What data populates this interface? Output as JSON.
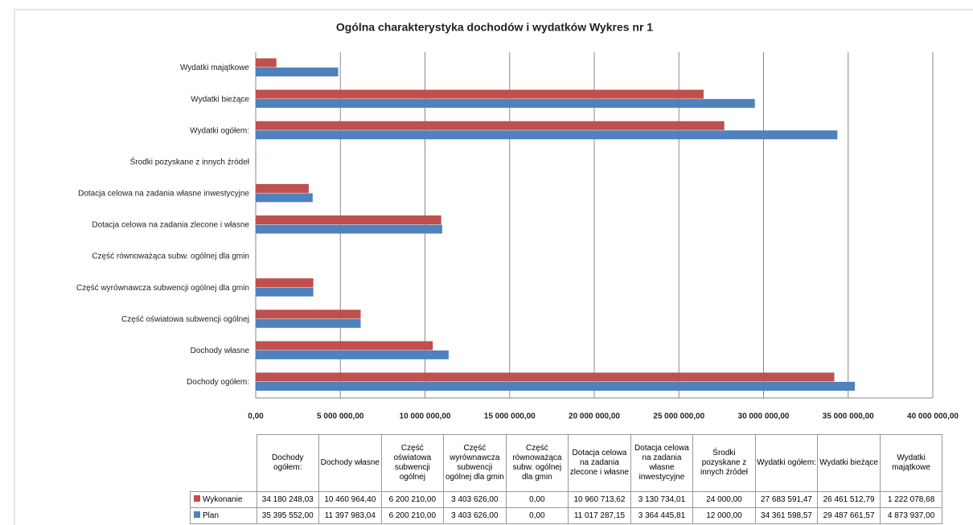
{
  "chart_data": {
    "type": "barh",
    "title": "Ogólna charakterystyka dochodów i wydatków   Wykres nr 1",
    "categories": [
      "Dochody ogółem:",
      "Dochody własne",
      "Część oświatowa subwencji ogólnej",
      "Część wyrównawcza subwencji ogólnej dla gmin",
      "Część równoważąca subw. ogólnej dla gmin",
      "Dotacja celowa na zadania zlecone i własne",
      "Dotacja celowa na zadania własne inwestycyjne",
      "Środki pozyskane z innych źródeł",
      "Wydatki ogółem:",
      "Wydatki bieżące",
      "Wydatki majątkowe"
    ],
    "series": [
      {
        "name": "Wykonanie",
        "color": "#c0504d",
        "values": [
          34180248.03,
          10460964.4,
          6200210.0,
          3403626.0,
          0,
          10960713.62,
          3130734.01,
          24000.0,
          27683591.47,
          26461512.79,
          1222078.68
        ],
        "value_labels": [
          "34 180 248,03",
          "10 460 964,40",
          "6 200 210,00",
          "3 403 626,00",
          "0,00",
          "10 960 713,62",
          "3 130 734,01",
          "24 000,00",
          "27 683 591,47",
          "26 461 512,79",
          "1 222 078,68"
        ]
      },
      {
        "name": "Plan",
        "color": "#4f81bd",
        "values": [
          35395552.0,
          11397983.04,
          6200210.0,
          3403626.0,
          0,
          11017287.15,
          3364445.81,
          12000.0,
          34361598.57,
          29487661.57,
          4873937.0
        ],
        "value_labels": [
          "35 395 552,00",
          "11 397 983,04",
          "6 200 210,00",
          "3 403 626,00",
          "0,00",
          "11 017 287,15",
          "3 364 445,81",
          "12 000,00",
          "34 361 598,57",
          "29 487 661,57",
          "4 873 937,00"
        ]
      }
    ],
    "xlim": [
      0,
      40000000
    ],
    "xticks": [
      {
        "value": 0,
        "label": "0,00"
      },
      {
        "value": 5000000,
        "label": "5 000 000,00"
      },
      {
        "value": 10000000,
        "label": "10 000 000,00"
      },
      {
        "value": 15000000,
        "label": "15 000 000,00"
      },
      {
        "value": 20000000,
        "label": "20 000 000,00"
      },
      {
        "value": 25000000,
        "label": "25 000 000,00"
      },
      {
        "value": 30000000,
        "label": "30 000 000,00"
      },
      {
        "value": 35000000,
        "label": "35 000 000,00"
      },
      {
        "value": 40000000,
        "label": "40 000 000,00"
      }
    ],
    "grid": true
  }
}
